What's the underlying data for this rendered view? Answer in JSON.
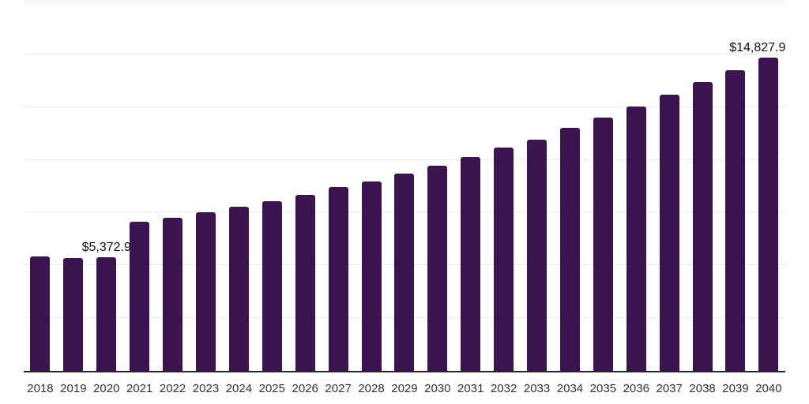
{
  "chart_data": {
    "type": "bar",
    "title": "",
    "xlabel": "",
    "ylabel": "",
    "categories": [
      "2018",
      "2019",
      "2020",
      "2021",
      "2022",
      "2023",
      "2024",
      "2025",
      "2026",
      "2027",
      "2028",
      "2029",
      "2030",
      "2031",
      "2032",
      "2033",
      "2034",
      "2035",
      "2036",
      "2037",
      "2038",
      "2039",
      "2040"
    ],
    "values": [
      5430,
      5355,
      5372.9,
      7061,
      7259,
      7535,
      7770,
      8031,
      8340,
      8702,
      8989,
      9362,
      9735,
      10146,
      10578,
      10966,
      11511,
      12011,
      12533,
      13092,
      13689,
      14249,
      14827.9
    ],
    "data_labels": [
      {
        "category": "2020",
        "text": "$5,372.9"
      },
      {
        "category": "2040",
        "text": "$14,827.9"
      }
    ],
    "ylim": [
      0,
      17500
    ],
    "gridline_interval": 2500,
    "grid": true,
    "legend": false,
    "colors": {
      "bar": "#3a1451",
      "gridline": "#ececec",
      "axis_line": "#262626",
      "tick_label": "#333333",
      "data_label": "#111111",
      "background": "#ffffff"
    }
  }
}
